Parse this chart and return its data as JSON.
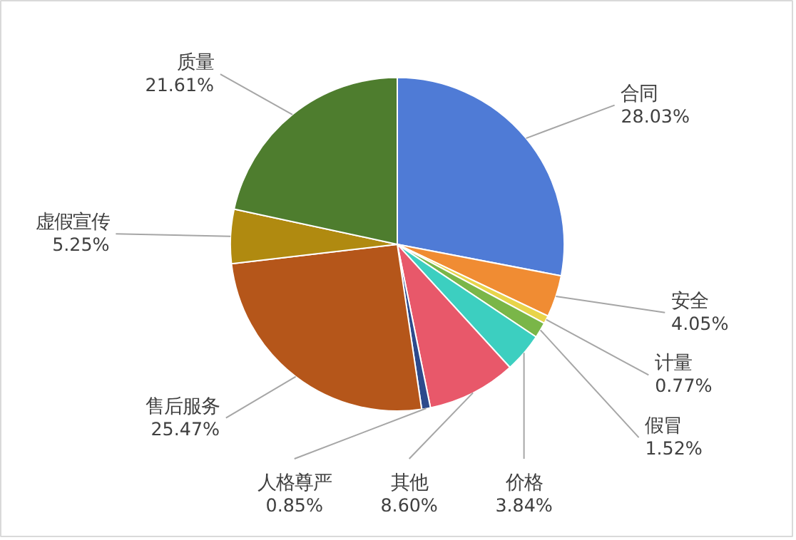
{
  "chart_data": {
    "type": "pie",
    "categories": [
      "合同",
      "安全",
      "计量",
      "假冒",
      "价格",
      "其他",
      "人格尊严",
      "售后服务",
      "虚假宣传",
      "质量"
    ],
    "values": [
      28.03,
      4.05,
      0.77,
      1.52,
      3.84,
      8.6,
      0.85,
      25.47,
      5.25,
      21.61
    ],
    "colors": [
      "#4f7bd6",
      "#f08c33",
      "#e8d44a",
      "#7ab648",
      "#3ccfc0",
      "#e8586a",
      "#2d4a8c",
      "#b5561a",
      "#b08a10",
      "#4e7d2e"
    ],
    "value_labels": [
      "28.03%",
      "4.05%",
      "0.77%",
      "1.52%",
      "3.84%",
      "8.60%",
      "0.85%",
      "25.47%",
      "5.25%",
      "21.61%"
    ]
  }
}
